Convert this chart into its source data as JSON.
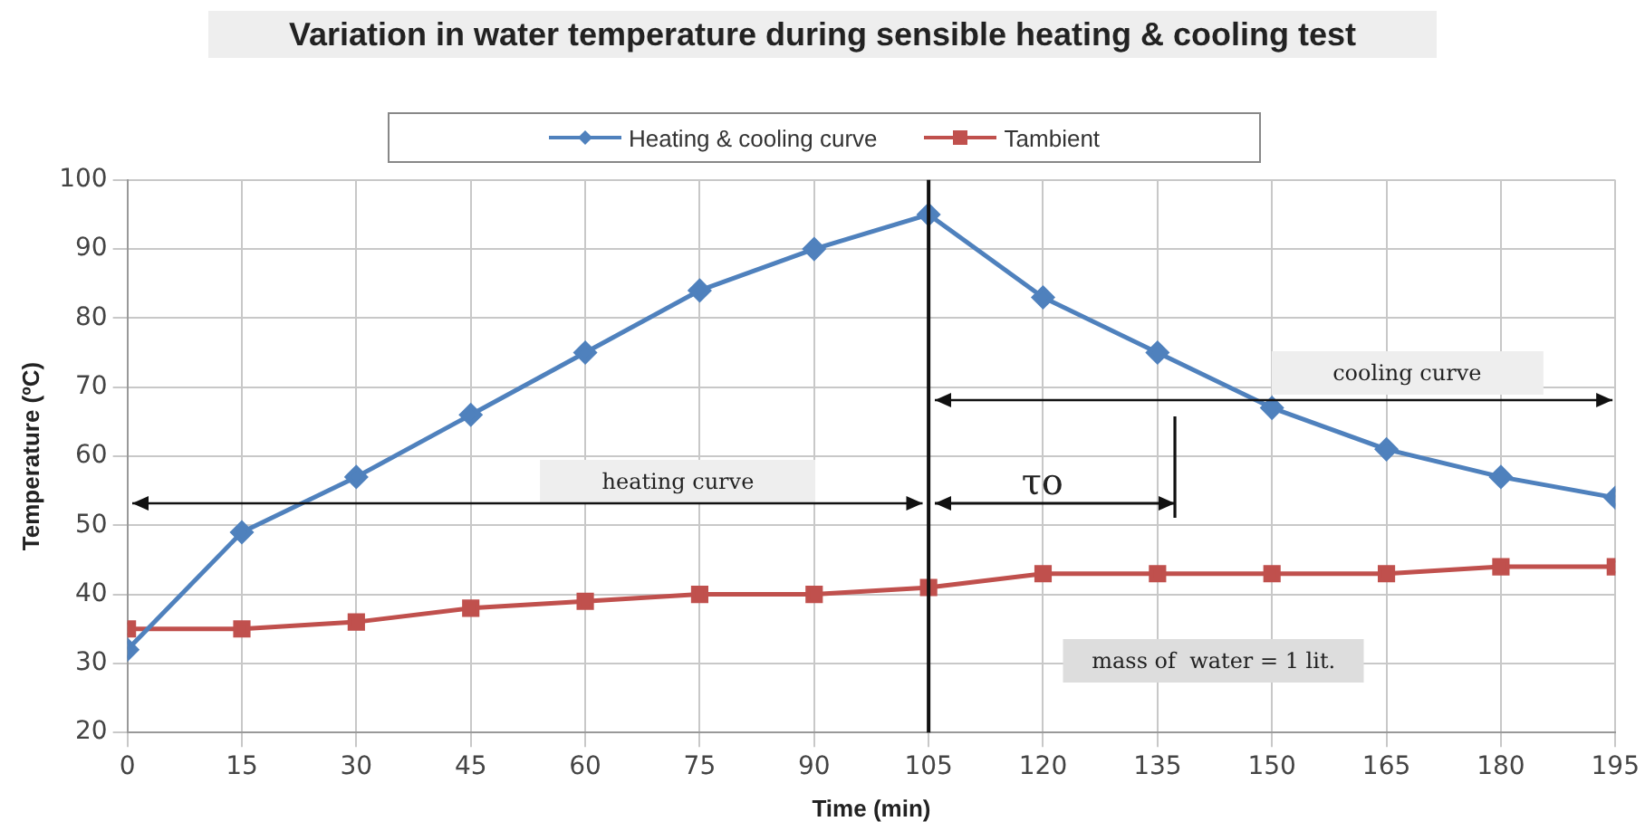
{
  "chart_data": {
    "type": "line",
    "title": "Variation in water temperature during sensible heating & cooling test",
    "xlabel": "Time (min)",
    "ylabel": "Temperature (ºC)",
    "x": [
      0,
      15,
      30,
      45,
      60,
      75,
      90,
      105,
      120,
      135,
      150,
      165,
      180,
      195
    ],
    "series": [
      {
        "name": "Heating & cooling curve",
        "color": "#4f81bd",
        "marker": "diamond",
        "values": [
          32,
          49,
          57,
          66,
          75,
          84,
          90,
          95,
          83,
          75,
          67,
          61,
          57,
          54
        ]
      },
      {
        "name": "Tambient",
        "color": "#c0504d",
        "marker": "square",
        "values": [
          35,
          35,
          36,
          38,
          39,
          40,
          40,
          41,
          43,
          43,
          43,
          43,
          44,
          44
        ]
      }
    ],
    "xlim": [
      0,
      195
    ],
    "xticks": [
      0,
      15,
      30,
      45,
      60,
      75,
      90,
      105,
      120,
      135,
      150,
      165,
      180,
      195
    ],
    "ylim": [
      20,
      100
    ],
    "yticks": [
      20,
      30,
      40,
      50,
      60,
      70,
      80,
      90,
      100
    ],
    "grid": true,
    "legend": "top",
    "ref_lines": [
      {
        "axis": "x",
        "value": 105
      }
    ],
    "annotations": [
      "heating curve",
      "τo",
      "cooling curve",
      "mass of  water = 1 lit."
    ]
  }
}
